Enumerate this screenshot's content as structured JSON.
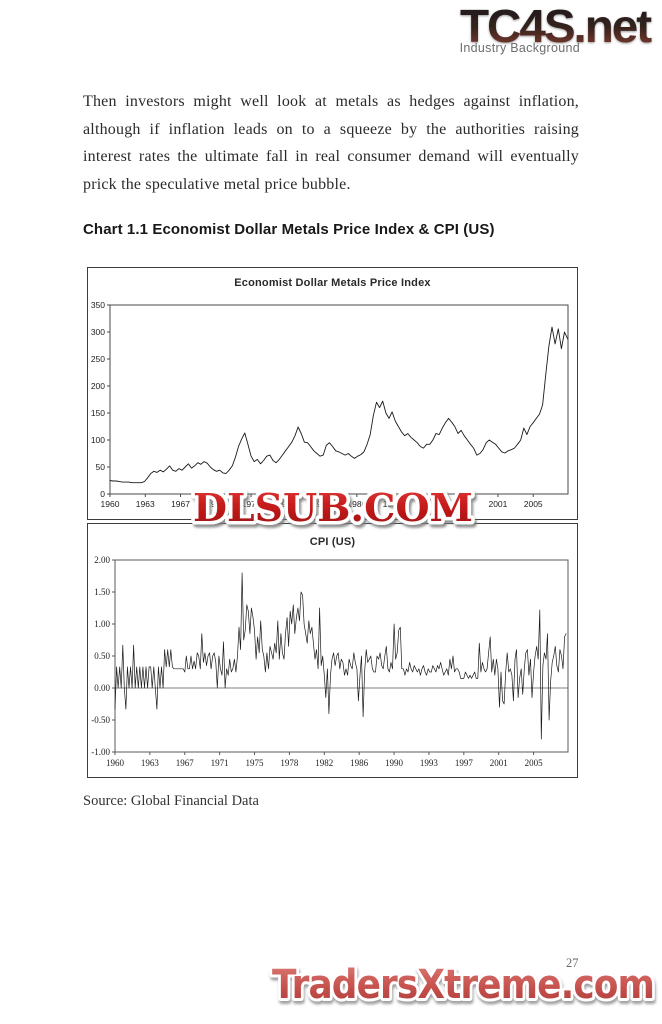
{
  "header": {
    "logo": "TC4S.net",
    "section": "Industry Background"
  },
  "body": {
    "paragraph": "Then investors might well look at metals as hedges against inflation, although if inflation leads on to a squeeze by the authorities raising interest rates the ultimate fall in real consumer demand will eventually prick the speculative metal price bubble.",
    "chart_heading": "Chart 1.1 Economist Dollar Metals Price Index & CPI (US)",
    "source": "Source: Global Financial Data"
  },
  "watermarks": {
    "center": "DLSUB.COM",
    "bottom": "TradersXtreme.com"
  },
  "footer": {
    "page_number": "27"
  },
  "colors": {
    "watermark_red_top": "#e23b3b",
    "watermark_red_bottom": "#9d0f0f",
    "watermark_soft_top": "#da7a74",
    "watermark_soft_bottom": "#ad3a37",
    "logo_top": "#1b1b1b",
    "logo_bottom": "#8c4030",
    "series_line": "#1b1b1b"
  },
  "chart_data": [
    {
      "type": "line",
      "title": "Economist Dollar Metals Price Index",
      "xlabel": "",
      "ylabel": "",
      "grid": false,
      "legend": null,
      "x_start": 1960,
      "x_step": 0.33333,
      "xlim": [
        1960,
        2008.7
      ],
      "ylim": [
        0,
        350
      ],
      "y_ticks": [
        0,
        50,
        100,
        150,
        200,
        250,
        300,
        350
      ],
      "y_tick_labels": [
        "0",
        "50",
        "100",
        "150",
        "200",
        "250",
        "300",
        "350"
      ],
      "x_ticks": [
        1960,
        1963.75,
        1967.5,
        1971.25,
        1975,
        1978.75,
        1982.5,
        1986.25,
        1990,
        1993.75,
        1997.5,
        2001.25,
        2005
      ],
      "x_tick_labels": [
        "1960",
        "1963",
        "1967",
        "1971",
        "1975",
        "1978",
        "1982",
        "1986",
        "1990",
        "1993",
        "1997",
        "2001",
        "2005"
      ],
      "zero_line": false,
      "values": [
        25,
        24,
        24,
        23,
        22,
        22,
        22,
        21,
        21,
        21,
        21,
        23,
        30,
        38,
        42,
        40,
        44,
        41,
        46,
        52,
        44,
        42,
        47,
        44,
        50,
        56,
        48,
        52,
        58,
        55,
        60,
        57,
        50,
        45,
        42,
        44,
        39,
        38,
        44,
        52,
        68,
        88,
        102,
        113,
        92,
        70,
        60,
        64,
        56,
        62,
        70,
        72,
        62,
        58,
        64,
        72,
        80,
        88,
        96,
        108,
        124,
        112,
        96,
        95,
        88,
        80,
        75,
        70,
        72,
        90,
        95,
        88,
        80,
        78,
        75,
        72,
        75,
        70,
        66,
        70,
        73,
        78,
        92,
        110,
        145,
        170,
        160,
        172,
        150,
        140,
        152,
        135,
        125,
        115,
        108,
        112,
        105,
        100,
        95,
        88,
        85,
        92,
        92,
        100,
        112,
        110,
        122,
        132,
        140,
        133,
        125,
        112,
        118,
        108,
        100,
        92,
        85,
        72,
        75,
        82,
        95,
        100,
        96,
        92,
        85,
        78,
        76,
        80,
        82,
        85,
        92,
        100,
        122,
        110,
        125,
        132,
        140,
        148,
        165,
        220,
        274,
        309,
        278,
        306,
        269,
        300,
        287
      ]
    },
    {
      "type": "line",
      "title": "CPI (US)",
      "xlabel": "",
      "ylabel": "",
      "grid": false,
      "legend": null,
      "x_start": 1960,
      "x_step": 0.16667,
      "xlim": [
        1960,
        2008.7
      ],
      "ylim": [
        -1,
        2
      ],
      "y_ticks": [
        -1,
        -0.5,
        0,
        0.5,
        1,
        1.5,
        2
      ],
      "y_tick_labels": [
        "-1.00",
        "-0.50",
        "0.00",
        "0.50",
        "1.00",
        "1.50",
        "2.00"
      ],
      "x_ticks": [
        1960,
        1963.75,
        1967.5,
        1971.25,
        1975,
        1978.75,
        1982.5,
        1986.25,
        1990,
        1993.75,
        1997.5,
        2001.25,
        2005
      ],
      "x_tick_labels": [
        "1960",
        "1963",
        "1967",
        "1971",
        "1975",
        "1978",
        "1982",
        "1986",
        "1990",
        "1993",
        "1997",
        "2001",
        "2005"
      ],
      "zero_line": true,
      "values": [
        -0.33,
        0.33,
        0,
        0.33,
        0,
        0.67,
        0,
        -0.33,
        0.33,
        0,
        0.33,
        0,
        0.67,
        0,
        0.33,
        0,
        0.33,
        0,
        0.33,
        0,
        0.33,
        0,
        0.33,
        0.33,
        0,
        0.33,
        0,
        -0.33,
        0.33,
        0,
        0.33,
        0,
        0.6,
        0.33,
        0.6,
        0.33,
        0.6,
        0.33,
        0.3,
        0.3,
        0.3,
        0.3,
        0.3,
        0.3,
        0.3,
        0.25,
        0.5,
        0.3,
        0.3,
        0.5,
        0.3,
        0.42,
        0.3,
        0.55,
        0.5,
        0.3,
        0.85,
        0.4,
        0.55,
        0.35,
        0.5,
        0.55,
        0.3,
        0.5,
        0.55,
        0.4,
        0,
        0.5,
        0.3,
        0.2,
        0.72,
        0,
        0.3,
        0.2,
        0.45,
        0.25,
        0.3,
        0.45,
        0.25,
        0.5,
        0.95,
        0.6,
        1.8,
        0.75,
        0.9,
        1.3,
        1.2,
        0.85,
        1.25,
        1.1,
        0.9,
        0.45,
        0.8,
        0.55,
        1.05,
        0.6,
        0.5,
        0.25,
        0.55,
        0.3,
        0.65,
        0.55,
        0.45,
        0.7,
        0.55,
        1.05,
        0.45,
        0.85,
        0.55,
        0.45,
        0.85,
        1.1,
        0.65,
        1.2,
        1.0,
        1.3,
        0.85,
        1.1,
        1.25,
        1.05,
        1.5,
        1.45,
        1.0,
        0.85,
        0.7,
        1.05,
        0.85,
        0.95,
        0.7,
        0.45,
        0.6,
        0.3,
        1.25,
        0.35,
        0.5,
        0.2,
        -0.15,
        0.3,
        -0.4,
        0.2,
        0.45,
        0.55,
        0.35,
        0.5,
        0.55,
        0.3,
        0.45,
        0.4,
        0.2,
        0.3,
        0.2,
        0.45,
        0.35,
        0.3,
        0.55,
        0.4,
        0.3,
        -0.2,
        0.2,
        0.5,
        -0.45,
        0.25,
        0.6,
        0.4,
        0.45,
        0.5,
        0.3,
        0.25,
        0.25,
        0.5,
        0.45,
        0.55,
        0.35,
        0.3,
        0.5,
        0.65,
        0.3,
        0.25,
        0.4,
        0.3,
        1.0,
        0.45,
        0.55,
        0.9,
        0.95,
        0.3,
        0.3,
        0.2,
        0.3,
        0.25,
        0.4,
        0.3,
        0.25,
        0.35,
        0.3,
        0.25,
        0.3,
        0.2,
        0.3,
        0.35,
        0.25,
        0.2,
        0.3,
        0.25,
        0.25,
        0.35,
        0.3,
        0.25,
        0.35,
        0.3,
        0.4,
        0.3,
        0.2,
        0.25,
        0.3,
        0.2,
        0.45,
        0.3,
        0.5,
        0.25,
        0.3,
        0.3,
        0.25,
        0.15,
        0.15,
        0.15,
        0.25,
        0.2,
        0.15,
        0.2,
        0.15,
        0.2,
        0.25,
        0.15,
        0.15,
        0.7,
        0.25,
        0.4,
        0.3,
        0.25,
        0.3,
        0.55,
        0.8,
        0.25,
        0.45,
        0.2,
        0.45,
        0.3,
        -0.3,
        0.25,
        -0.2,
        -0.25,
        0.25,
        0.55,
        0.25,
        0.3,
        0.2,
        -0.2,
        0.45,
        0.6,
        -0.15,
        0.15,
        0.3,
        -0.1,
        0.3,
        0.55,
        0.6,
        0.2,
        0.45,
        -0.15,
        0.25,
        0.5,
        0.65,
        0.45,
        1.22,
        -0.8,
        0.35,
        0.55,
        0.45,
        0.85,
        -0.5,
        0.1,
        0.4,
        0.5,
        0.65,
        0.35,
        0.25,
        0.6,
        0.5,
        0.3,
        0.8,
        0.85
      ]
    }
  ]
}
